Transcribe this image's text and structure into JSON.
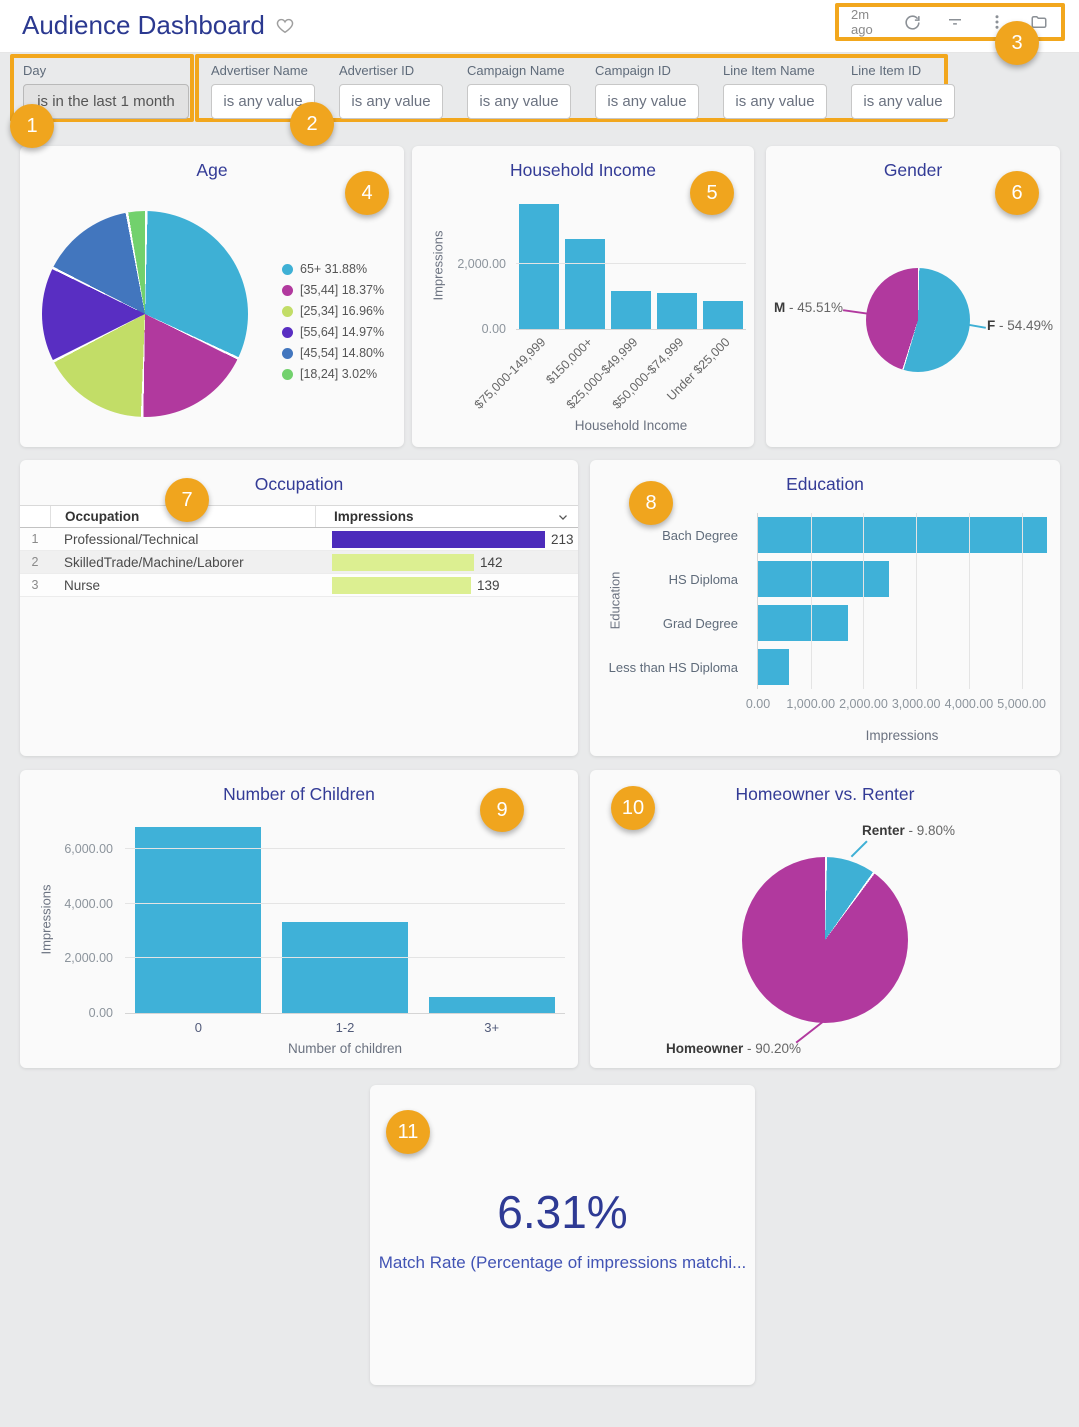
{
  "header": {
    "title": "Audience Dashboard",
    "last_refresh": "2m ago",
    "toolbar_icons": [
      "refresh-icon",
      "filter-icon",
      "more-vert-icon",
      "folder-icon"
    ]
  },
  "filters": {
    "day": {
      "label": "Day",
      "value": "is in the last 1 month"
    },
    "items": [
      {
        "label": "Advertiser Name",
        "value": "is any value"
      },
      {
        "label": "Advertiser ID",
        "value": "is any value"
      },
      {
        "label": "Campaign Name",
        "value": "is any value"
      },
      {
        "label": "Campaign ID",
        "value": "is any value"
      },
      {
        "label": "Line Item Name",
        "value": "is any value"
      },
      {
        "label": "Line Item ID",
        "value": "is any value"
      }
    ]
  },
  "annotations": [
    "1",
    "2",
    "3",
    "4",
    "5",
    "6",
    "7",
    "8",
    "9",
    "10",
    "11"
  ],
  "colors": {
    "accent_orange": "#F2A71D",
    "cyan": "#3EB0D5",
    "magenta": "#B1399E",
    "yellow_green": "#C2DD67",
    "purple": "#592EC2",
    "steel_blue": "#4276BE",
    "green": "#72D16D",
    "bar_blue": "#3FB1D8",
    "table_bar_purple": "#4C2BBB",
    "table_bar_green": "#DCEF91"
  },
  "chart_data": [
    {
      "id": "age",
      "type": "pie",
      "title": "Age",
      "slices": [
        {
          "label": "65+",
          "pct": 31.88,
          "legend": "65+ 31.88%",
          "color": "#3EB0D5"
        },
        {
          "label": "[35,44]",
          "pct": 18.37,
          "legend": "[35,44] 18.37%",
          "color": "#B1399E"
        },
        {
          "label": "[25,34]",
          "pct": 16.96,
          "legend": "[25,34] 16.96%",
          "color": "#C2DD67"
        },
        {
          "label": "[55,64]",
          "pct": 14.97,
          "legend": "[55,64] 14.97%",
          "color": "#592EC2"
        },
        {
          "label": "[45,54]",
          "pct": 14.8,
          "legend": "[45,54] 14.80%",
          "color": "#4276BE"
        },
        {
          "label": "[18,24]",
          "pct": 3.02,
          "legend": "[18,24] 3.02%",
          "color": "#72D16D"
        }
      ],
      "legend_position": "right"
    },
    {
      "id": "household_income",
      "type": "bar",
      "title": "Household Income",
      "xlabel": "Household Income",
      "ylabel": "Impressions",
      "categories": [
        "$75,000-149,999",
        "$150,000+",
        "$25,000-$49,999",
        "$50,000-$74,999",
        "Under $25,000"
      ],
      "values": [
        3850,
        2770,
        1180,
        1120,
        870
      ],
      "ymax": 3940,
      "yticks": [
        {
          "v": 0,
          "label": "0.00"
        },
        {
          "v": 2000,
          "label": "2,000.00"
        }
      ],
      "bar_color": "#3FB1D8"
    },
    {
      "id": "gender",
      "type": "pie",
      "title": "Gender",
      "slices": [
        {
          "name": "F",
          "pct": 54.49,
          "rest": " - 54.49%",
          "color": "#3EB0D5"
        },
        {
          "name": "M",
          "pct": 45.51,
          "rest": " - 45.51%",
          "color": "#B1399E"
        }
      ]
    },
    {
      "id": "occupation",
      "type": "table",
      "title": "Occupation",
      "columns": [
        "Occupation",
        "Impressions"
      ],
      "bar_scale_max": 213,
      "rows": [
        {
          "rank": "1",
          "label": "Professional/Technical",
          "value": "213",
          "num": 213,
          "bar_color": "#4C2BBB"
        },
        {
          "rank": "2",
          "label": "SkilledTrade/Machine/Laborer",
          "value": "142",
          "num": 142,
          "bar_color": "#DCEF91"
        },
        {
          "rank": "3",
          "label": "Nurse",
          "value": "139",
          "num": 139,
          "bar_color": "#DCEF91"
        }
      ]
    },
    {
      "id": "education",
      "type": "bar_horizontal",
      "title": "Education",
      "xlabel": "Impressions",
      "ylabel": "Education",
      "categories": [
        "Bach Degree",
        "HS Diploma",
        "Grad Degree",
        "Less than HS Diploma"
      ],
      "values": [
        5480,
        2480,
        1700,
        580
      ],
      "xmax": 5500,
      "xticks": [
        {
          "v": 0,
          "label": "0.00"
        },
        {
          "v": 1000,
          "label": "1,000.00"
        },
        {
          "v": 2000,
          "label": "2,000.00"
        },
        {
          "v": 3000,
          "label": "3,000.00"
        },
        {
          "v": 4000,
          "label": "4,000.00"
        },
        {
          "v": 5000,
          "label": "5,000.00"
        }
      ],
      "bar_color": "#3FB1D8"
    },
    {
      "id": "number_of_children",
      "type": "bar",
      "title": "Number of Children",
      "xlabel": "Number of children",
      "ylabel": "Impressions",
      "categories": [
        "0",
        "1-2",
        "3+"
      ],
      "values": [
        6800,
        3340,
        590
      ],
      "ymax": 6875,
      "yticks": [
        {
          "v": 0,
          "label": "0.00"
        },
        {
          "v": 2000,
          "label": "2,000.00"
        },
        {
          "v": 4000,
          "label": "4,000.00"
        },
        {
          "v": 6000,
          "label": "6,000.00"
        }
      ],
      "bar_color": "#3FB1D8"
    },
    {
      "id": "homeowner_vs_renter",
      "type": "pie",
      "title": "Homeowner vs. Renter",
      "slices": [
        {
          "name": "Renter",
          "pct": 9.8,
          "rest": " - 9.80%",
          "color": "#3EB0D5"
        },
        {
          "name": "Homeowner",
          "pct": 90.2,
          "rest": " - 90.20%",
          "color": "#B1399E"
        }
      ]
    },
    {
      "id": "match_rate",
      "type": "single_value",
      "value": "6.31%",
      "label": "Match Rate (Percentage of impressions matchi..."
    }
  ]
}
